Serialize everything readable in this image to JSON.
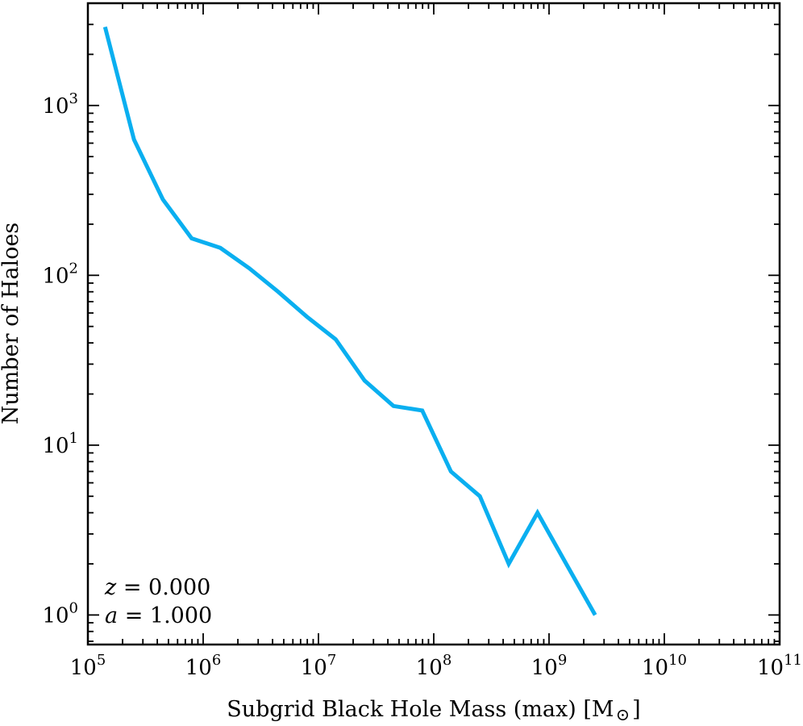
{
  "chart_data": {
    "type": "line",
    "title": "",
    "xlabel": "Subgrid Black Hole Mass (max) [M",
    "xlabel_unit_symbol": "⊙",
    "xlabel_close": "]",
    "ylabel": "Number of Haloes",
    "xscale": "log",
    "yscale": "log",
    "xlim": [
      100000,
      100000000000
    ],
    "ylim": [
      0.67,
      4000
    ],
    "x_ticks": [
      {
        "base": "10",
        "exp": "5",
        "value": 100000
      },
      {
        "base": "10",
        "exp": "6",
        "value": 1000000
      },
      {
        "base": "10",
        "exp": "7",
        "value": 10000000
      },
      {
        "base": "10",
        "exp": "8",
        "value": 100000000
      },
      {
        "base": "10",
        "exp": "9",
        "value": 1000000000
      },
      {
        "base": "10",
        "exp": "10",
        "value": 10000000000
      },
      {
        "base": "10",
        "exp": "11",
        "value": 100000000000
      }
    ],
    "y_ticks": [
      {
        "base": "10",
        "exp": "0",
        "value": 1
      },
      {
        "base": "10",
        "exp": "1",
        "value": 10
      },
      {
        "base": "10",
        "exp": "2",
        "value": 100
      },
      {
        "base": "10",
        "exp": "3",
        "value": 1000
      }
    ],
    "grid": false,
    "series": [
      {
        "color": "#0aaff0",
        "x": [
          141000,
          251000,
          447000,
          794000,
          1410000,
          2510000,
          4470000,
          7940000,
          14100000,
          25100000,
          44700000,
          79400000,
          141000000,
          251000000,
          447000000,
          794000000,
          1410000000,
          2510000000
        ],
        "y": [
          2900,
          630,
          280,
          165,
          145,
          110,
          80,
          57,
          42,
          24,
          17,
          16,
          7,
          5,
          2,
          4,
          2,
          1
        ]
      }
    ],
    "annotations": [
      {
        "var": "z",
        "eq": " = ",
        "value": "0.000"
      },
      {
        "var": "a",
        "eq": " = ",
        "value": "1.000"
      }
    ]
  }
}
